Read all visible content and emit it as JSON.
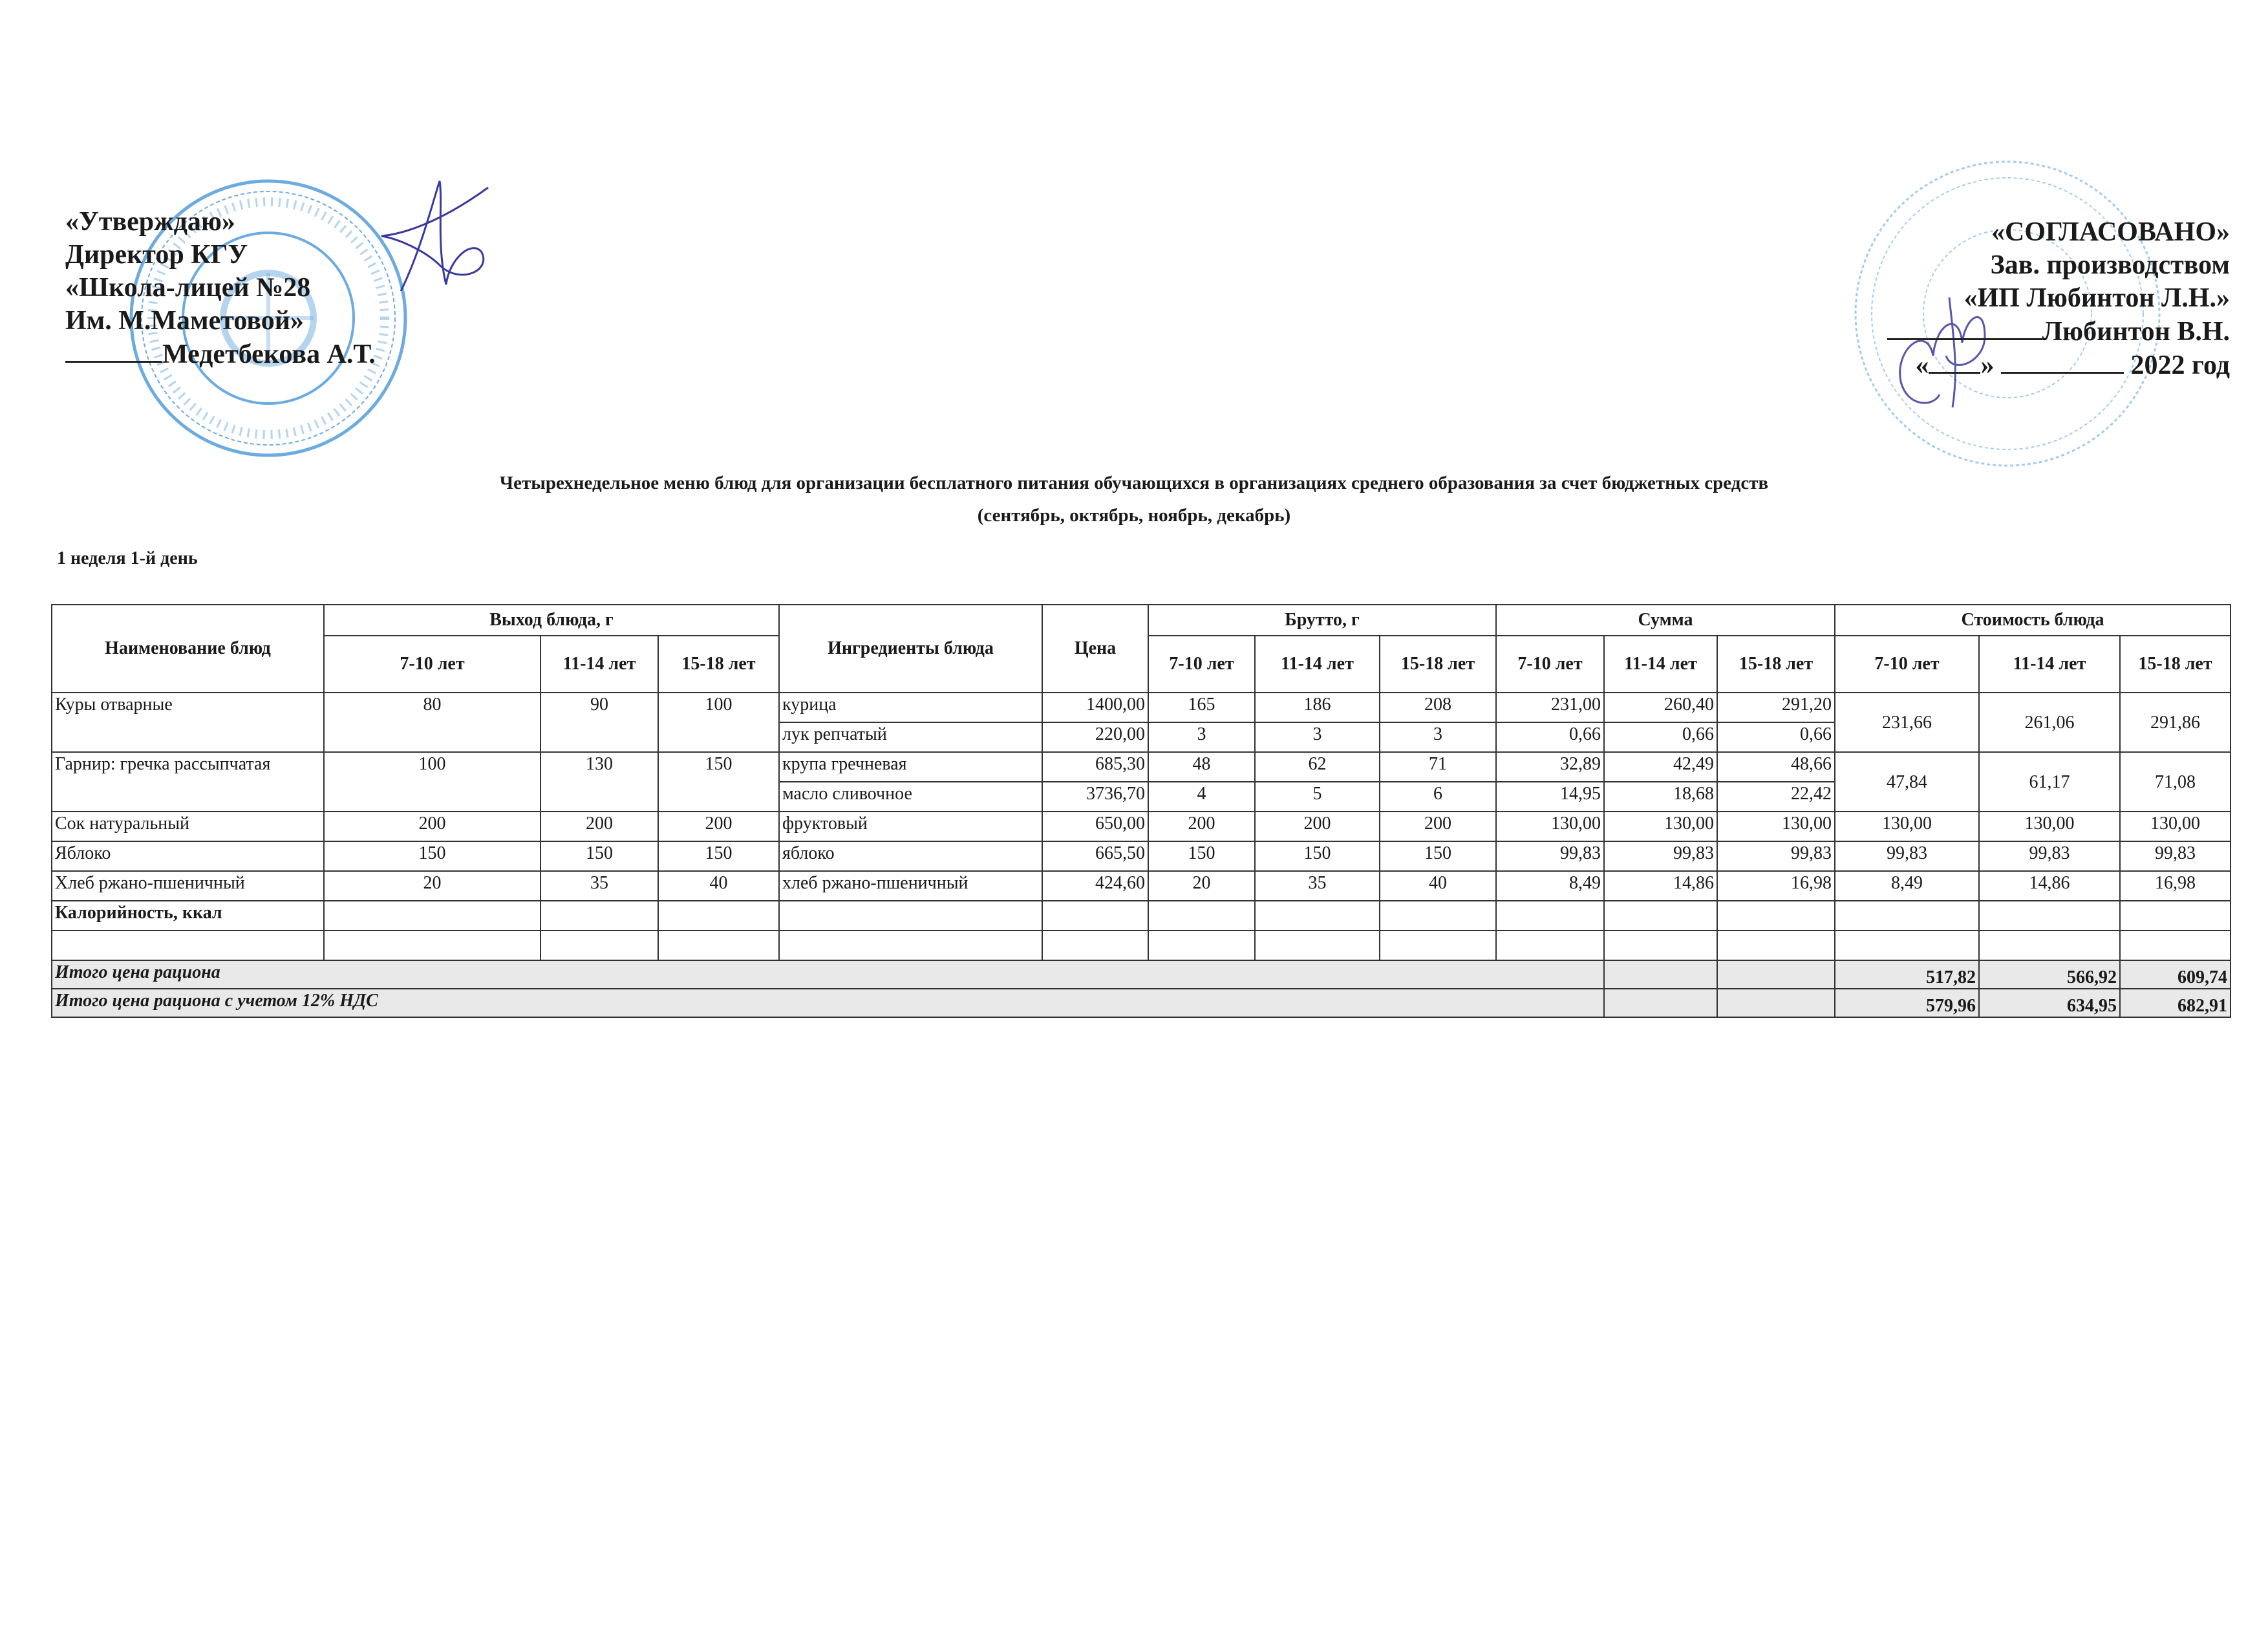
{
  "approval": {
    "lines": [
      "«Утверждаю»",
      "Директор КГУ",
      "«Школа-лицей №28",
      "Им. М.Маметовой»",
      "Медетбекова А.Т."
    ],
    "stamp_text": "АЛМАТЫ ҚАЛАСЫ БІЛІМ БАСҚАРМАСЫНЫҢ М.МӘМЕТОВА АТЫНДАҒЫ №28 МЕКТЕП-ЛИЦЕЙІ КММ БСН 990440003558"
  },
  "agreement": {
    "lines": [
      "«СОГЛАСОВАНО»",
      "Зав. производством",
      "«ИП Любинтон Л.Н.»",
      "Любинтон В.Н."
    ],
    "date_line": {
      "open_quote": "«",
      "close_quote": "»",
      "year": "2022 год"
    },
    "stamp_text": "ИНДИВИДУАЛЬНЫЙ ПРЕДПРИНИМАТЕЛЬ ЛЮБИНТОН"
  },
  "title": {
    "line1": "Четырехнедельное меню блюд для организации бесплатного питания обучающихся в организациях среднего образования за счет бюджетных средств",
    "line2": "(сентябрь, октябрь, ноябрь, декабрь)"
  },
  "week_label": "1 неделя 1-й день",
  "table": {
    "headers": {
      "dish_name": "Наименование блюд",
      "yield": "Выход блюда, г",
      "ingredients": "Ингредиенты блюда",
      "price": "Цена",
      "brutto": "Брутто, г",
      "sum": "Сумма",
      "cost": "Стоимость блюда",
      "ages": [
        "7-10 лет",
        "11-14 лет",
        "15-18 лет"
      ]
    },
    "dishes": [
      {
        "name": "Куры отварные",
        "yield": [
          "80",
          "90",
          "100"
        ],
        "cost": [
          "231,66",
          "261,06",
          "291,86"
        ],
        "ingredients": [
          {
            "name": "курица",
            "price": "1400,00",
            "brutto": [
              "165",
              "186",
              "208"
            ],
            "sum": [
              "231,00",
              "260,40",
              "291,20"
            ]
          },
          {
            "name": "лук репчатый",
            "price": "220,00",
            "brutto": [
              "3",
              "3",
              "3"
            ],
            "sum": [
              "0,66",
              "0,66",
              "0,66"
            ]
          }
        ]
      },
      {
        "name": "Гарнир: гречка рассыпчатая",
        "yield": [
          "100",
          "130",
          "150"
        ],
        "cost": [
          "47,84",
          "61,17",
          "71,08"
        ],
        "ingredients": [
          {
            "name": "крупа гречневая",
            "price": "685,30",
            "brutto": [
              "48",
              "62",
              "71"
            ],
            "sum": [
              "32,89",
              "42,49",
              "48,66"
            ]
          },
          {
            "name": "масло сливочное",
            "price": "3736,70",
            "brutto": [
              "4",
              "5",
              "6"
            ],
            "sum": [
              "14,95",
              "18,68",
              "22,42"
            ]
          }
        ]
      },
      {
        "name": "Сок натуральный",
        "yield": [
          "200",
          "200",
          "200"
        ],
        "cost": [
          "130,00",
          "130,00",
          "130,00"
        ],
        "ingredients": [
          {
            "name": "фруктовый",
            "price": "650,00",
            "brutto": [
              "200",
              "200",
              "200"
            ],
            "sum": [
              "130,00",
              "130,00",
              "130,00"
            ]
          }
        ]
      },
      {
        "name": "Яблоко",
        "yield": [
          "150",
          "150",
          "150"
        ],
        "cost": [
          "99,83",
          "99,83",
          "99,83"
        ],
        "ingredients": [
          {
            "name": "яблоко",
            "price": "665,50",
            "brutto": [
              "150",
              "150",
              "150"
            ],
            "sum": [
              "99,83",
              "99,83",
              "99,83"
            ]
          }
        ]
      },
      {
        "name": "Хлеб ржано-пшеничный",
        "yield": [
          "20",
          "35",
          "40"
        ],
        "cost": [
          "8,49",
          "14,86",
          "16,98"
        ],
        "ingredients": [
          {
            "name": "хлеб ржано-пшеничный",
            "price": "424,60",
            "brutto": [
              "20",
              "35",
              "40"
            ],
            "sum": [
              "8,49",
              "14,86",
              "16,98"
            ]
          }
        ]
      }
    ],
    "calories_label": "Калорийность, ккал",
    "totals": [
      {
        "label": "Итого цена рациона",
        "values": [
          "517,82",
          "566,92",
          "609,74"
        ]
      },
      {
        "label": "Итого цена рациона с учетом 12% НДС",
        "values": [
          "579,96",
          "634,95",
          "682,91"
        ]
      }
    ]
  },
  "colors": {
    "stamp": "#3b8fd6",
    "signature": "#3a3a9e",
    "total_row_bg": "#e9e9e9"
  }
}
